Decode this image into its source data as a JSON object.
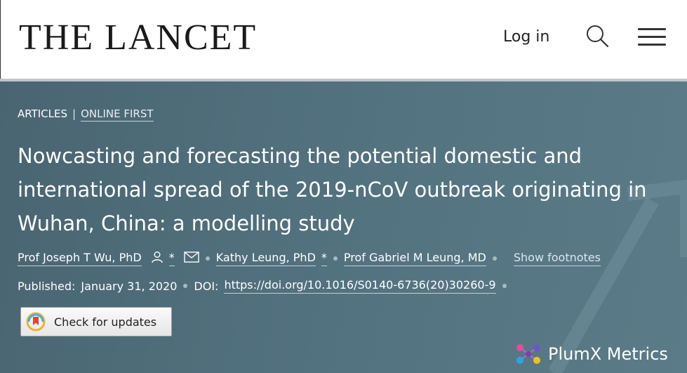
{
  "header": {
    "logo_text": "THE LANCET",
    "login_label": "Log in",
    "search_icon": "search-icon",
    "menu_icon": "hamburger-menu-icon"
  },
  "article": {
    "breadcrumb": {
      "section": "ARTICLES",
      "separator": "|",
      "status": "ONLINE FIRST"
    },
    "title": "Nowcasting and forecasting the potential domestic and international spread of the 2019-nCoV outbreak originating in Wuhan, China: a modelling study",
    "authors": [
      {
        "name": "Prof Joseph T Wu, PhD",
        "has_person_icon": true,
        "mark": "*",
        "has_email_icon": true
      },
      {
        "name": "Kathy Leung, PhD",
        "mark": "*"
      },
      {
        "name": "Prof Gabriel M Leung, MD"
      }
    ],
    "show_footnotes_label": "Show footnotes",
    "published_label": "Published:",
    "published_date": "January 31, 2020",
    "doi_label": "DOI:",
    "doi_link": "https://doi.org/10.1016/S0140-6736(20)30260-9"
  },
  "widgets": {
    "check_updates_label": "Check for updates",
    "plumx_label": "PlumX Metrics"
  },
  "colors": {
    "hero_background": "#547381",
    "dot_color": "#a9b9c0",
    "header_background": "#ffffff"
  }
}
